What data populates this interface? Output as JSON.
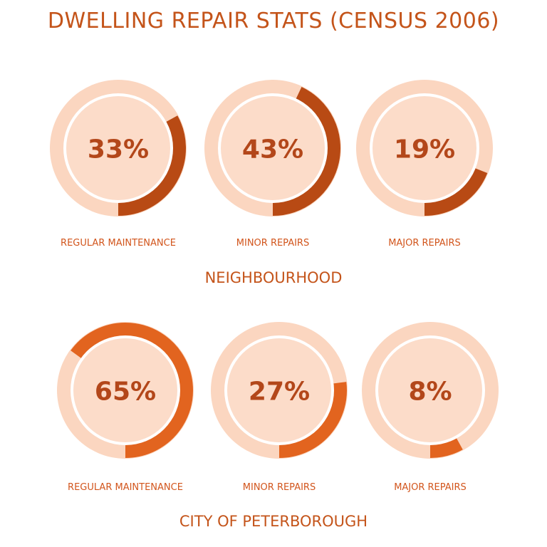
{
  "title": "DWELLING REPAIR STATS (CENSUS 2006)",
  "colors": {
    "outer": "#fbd6c0",
    "inner": "#fcdcc9",
    "ring_gap": "#ffffff",
    "neighbourhood_arc": "#b84a14",
    "city_arc": "#e2641f",
    "text": "#c4541a"
  },
  "chart_data": [
    {
      "type": "pie",
      "title": "NEIGHBOURHOOD",
      "categories": [
        "REGULAR MAINTENANCE",
        "MINOR REPAIRS",
        "MAJOR REPAIRS"
      ],
      "values": [
        33,
        43,
        19
      ],
      "value_labels": [
        "33%",
        "43%",
        "19%"
      ]
    },
    {
      "type": "pie",
      "title": "CITY OF PETERBOROUGH",
      "categories": [
        "REGULAR MAINTENANCE",
        "MINOR REPAIRS",
        "MAJOR REPAIRS"
      ],
      "values": [
        65,
        27,
        8
      ],
      "value_labels": [
        "65%",
        "27%",
        "8%"
      ]
    }
  ]
}
